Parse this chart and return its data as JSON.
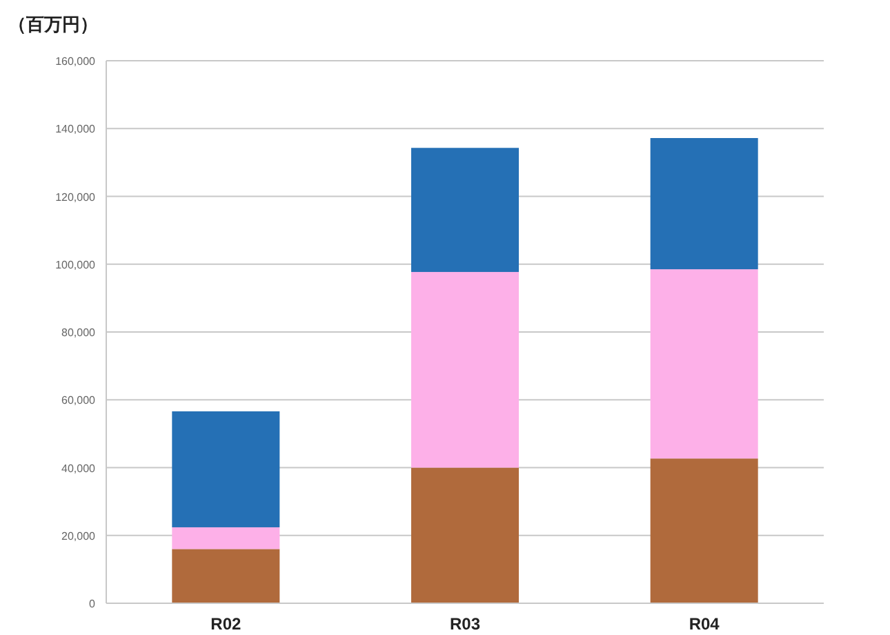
{
  "chart_data": {
    "type": "bar",
    "stacked": true,
    "ylabel": "（百万円）",
    "categories": [
      "R02",
      "R03",
      "R04"
    ],
    "series": [
      {
        "color": "#b06a3c",
        "values": [
          16000,
          40000,
          42700
        ]
      },
      {
        "color": "#fdb0e8",
        "values": [
          6400,
          57700,
          55800
        ]
      },
      {
        "color": "#2570b5",
        "values": [
          34200,
          36600,
          38700
        ]
      }
    ],
    "ylim": [
      0,
      160000
    ],
    "yticks": [
      0,
      {
        "value": 20000,
        "label": "20,000"
      },
      {
        "value": 40000,
        "label": "40,000"
      },
      {
        "value": 60000,
        "label": "60,000"
      },
      {
        "value": 80000,
        "label": "80,000"
      },
      {
        "value": 100000,
        "label": "100,000"
      },
      {
        "value": 120000,
        "label": "120,000"
      },
      {
        "value": 140000,
        "label": "140,000"
      },
      {
        "value": 160000,
        "label": "160,000"
      }
    ],
    "grid": "y"
  }
}
